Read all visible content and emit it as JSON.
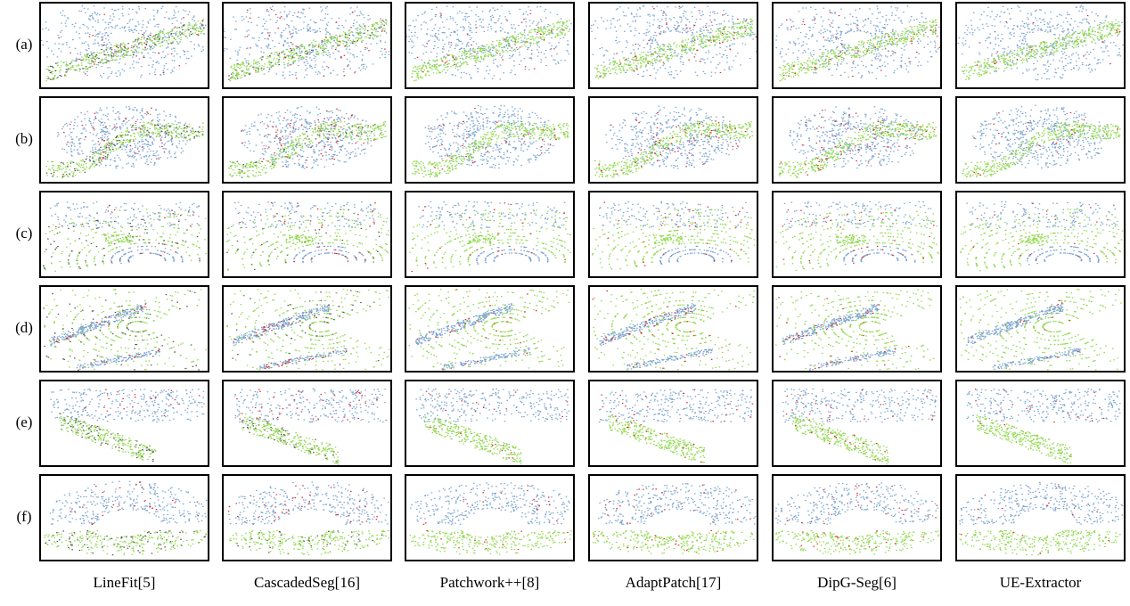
{
  "rows": [
    "(a)",
    "(b)",
    "(c)",
    "(d)",
    "(e)",
    "(f)"
  ],
  "methods": [
    "LineFit[5]",
    "CascadedSeg[16]",
    "Patchwork++[8]",
    "AdaptPatch[17]",
    "DipG-Seg[6]",
    "UE-Extractor"
  ],
  "colors": {
    "non_ground": "#7ba3d0",
    "ground": "#8ed84a",
    "error": "#e02b2b",
    "unlabeled": "#555555"
  }
}
